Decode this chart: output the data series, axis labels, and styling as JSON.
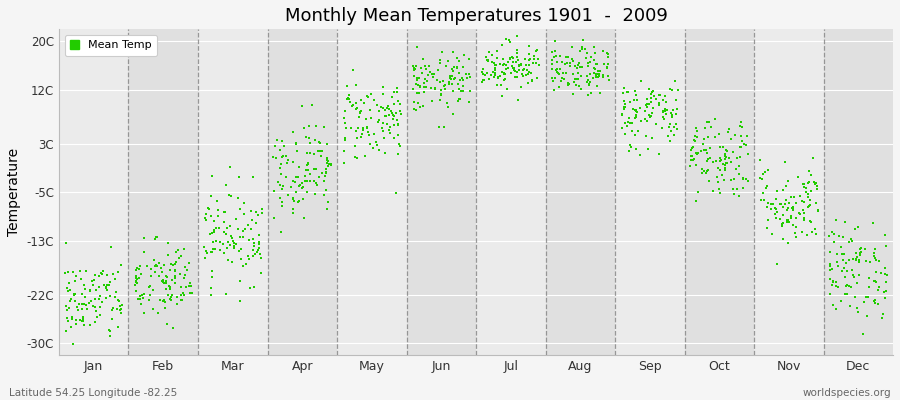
{
  "title": "Monthly Mean Temperatures 1901  -  2009",
  "ylabel": "Temperature",
  "xlabel_labels": [
    "Jan",
    "Feb",
    "Mar",
    "Apr",
    "May",
    "Jun",
    "Jul",
    "Aug",
    "Sep",
    "Oct",
    "Nov",
    "Dec"
  ],
  "yticks": [
    -30,
    -22,
    -13,
    -5,
    3,
    12,
    20
  ],
  "ytick_labels": [
    "-30C",
    "-22C",
    "-13C",
    "-5C",
    "3C",
    "12C",
    "20C"
  ],
  "ylim": [
    -32,
    22
  ],
  "dot_color": "#22cc00",
  "fig_facecolor": "#f5f5f5",
  "axes_facecolor": "#ebebeb",
  "legend_label": "Mean Temp",
  "subtitle_left": "Latitude 54.25 Longitude -82.25",
  "subtitle_right": "worldspecies.org",
  "monthly_means": [
    -23,
    -20,
    -12,
    -1,
    7,
    13,
    16,
    15,
    8,
    1,
    -7,
    -18
  ],
  "monthly_stds": [
    3.5,
    3.5,
    4.0,
    4.0,
    3.5,
    2.5,
    2.0,
    2.0,
    3.0,
    3.5,
    3.5,
    4.0
  ],
  "n_years": 109,
  "seed": 42,
  "figsize": [
    9.0,
    4.0
  ],
  "dpi": 100
}
